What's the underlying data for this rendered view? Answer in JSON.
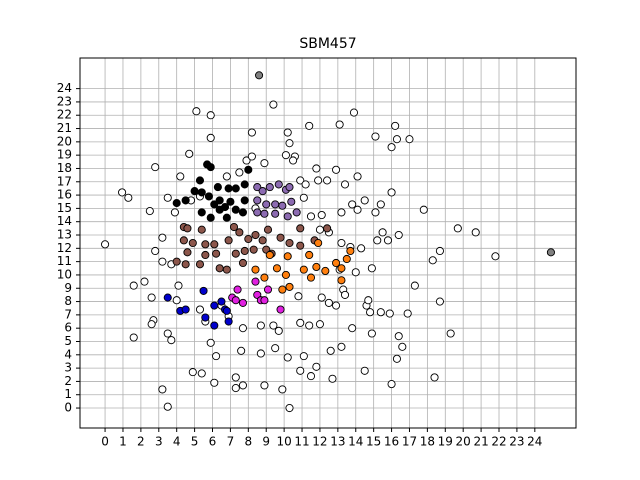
{
  "chart_data": {
    "type": "scatter",
    "title": "SBM457",
    "xlim": [
      -1.4,
      26.3
    ],
    "ylim": [
      -1.5,
      26.3
    ],
    "xticks": [
      0,
      1,
      2,
      3,
      4,
      5,
      6,
      7,
      8,
      9,
      10,
      11,
      12,
      13,
      14,
      15,
      16,
      17,
      18,
      19,
      20,
      21,
      22,
      23,
      24
    ],
    "yticks": [
      0,
      1,
      2,
      3,
      4,
      5,
      6,
      7,
      8,
      9,
      10,
      11,
      12,
      13,
      14,
      15,
      16,
      17,
      18,
      19,
      20,
      21,
      22,
      23,
      24
    ],
    "grid": true,
    "series": [
      {
        "color": "#ffffff",
        "x": [
          0,
          0.95,
          1.3,
          1.6,
          1.6,
          3.2,
          3.5,
          2.8,
          2.5,
          2.2,
          2.6,
          2.7,
          2.6,
          3.5,
          3.7,
          4.9,
          5.4,
          6.1,
          7.3,
          7.3,
          7.7,
          8.9,
          9.9,
          10.3,
          10.9,
          11.5,
          11.8,
          12.7,
          14.5,
          16,
          18.4,
          19.3,
          18.7,
          17.3,
          16.9,
          16.4,
          16.3,
          16.6,
          18.3,
          18.7,
          19.7,
          20.7,
          21.8,
          17.8,
          16.3,
          16,
          16.2,
          17,
          15.1,
          13.9,
          13.1,
          11.4,
          9.4,
          5.9,
          5.1,
          5.9,
          8.2,
          10.2,
          10.3,
          10.1,
          10.6,
          7.9,
          8.9,
          4.7,
          4.2,
          3.5,
          3.9,
          3.2,
          2.8,
          3.2,
          3.7,
          4.1,
          4.0,
          5.3,
          5.6,
          5.9,
          6.2,
          7.6,
          8.7,
          9.5,
          10.2,
          11.1,
          12.6,
          13.2,
          13.8,
          14.8,
          14.6,
          15.4,
          15.9,
          14.9,
          14.7,
          13.3,
          13.4,
          12.9,
          12,
          11.4,
          10.9,
          9.7,
          9.4,
          8.7,
          7.7,
          6.9,
          6.5,
          10.8,
          12.1,
          12.5,
          14.9,
          15.2,
          15.5,
          16.4,
          15.8,
          14.3,
          15.1,
          15.4,
          14.5,
          14.1,
          13.8,
          16,
          13.4,
          14.1,
          12.9,
          11.9,
          11.8,
          12.4,
          10.9,
          11.2,
          11.1,
          11.5,
          12.1,
          12.5,
          12,
          13.2,
          13.7,
          13.1,
          14,
          8.4,
          8.2,
          7.5,
          6.8,
          5.3,
          4.8,
          10.5,
          13.2
        ],
        "y": [
          12.3,
          16.2,
          15.8,
          5.3,
          9.2,
          1.4,
          0.1,
          18.1,
          14.8,
          9.5,
          8.3,
          6.6,
          6.3,
          5.6,
          5.1,
          2.7,
          2.6,
          1.9,
          1.5,
          2.3,
          1.7,
          1.7,
          1.4,
          0,
          2.8,
          2.4,
          3.1,
          2.2,
          2.8,
          1.8,
          2.3,
          5.6,
          8.0,
          9.2,
          7.1,
          5.4,
          3.7,
          4.6,
          11.1,
          11.8,
          13.5,
          13.2,
          11.4,
          14.9,
          20.2,
          19.6,
          21.2,
          20.2,
          20.4,
          22.2,
          21.3,
          21.2,
          22.8,
          22,
          22.3,
          20.3,
          20.7,
          20.7,
          19.9,
          19,
          18.9,
          18.6,
          18.4,
          19.1,
          17.4,
          15.8,
          14.7,
          12.8,
          11.8,
          11,
          10.8,
          9.2,
          8.1,
          7.4,
          6.5,
          4.9,
          3.9,
          4.3,
          4.1,
          4.5,
          3.8,
          3.9,
          4.3,
          4.6,
          6,
          7.2,
          7.7,
          7.2,
          7.1,
          5.6,
          8.1,
          8.9,
          8.5,
          7.7,
          6.3,
          6.2,
          6.4,
          5.8,
          6.2,
          6.2,
          6,
          6.9,
          7.7,
          8.4,
          8.3,
          7.9,
          10.5,
          12.6,
          13.2,
          13,
          12.6,
          12,
          14.7,
          15.3,
          15.6,
          14.9,
          15.3,
          16.2,
          16.8,
          17.4,
          17.9,
          17.1,
          18,
          17.1,
          17.1,
          16.8,
          15.8,
          14.4,
          14.5,
          13.2,
          13.4,
          12.4,
          12.1,
          10.4,
          10.2,
          15,
          18.9,
          17.7,
          17.4,
          15.9,
          15.6,
          18.6,
          14.7
        ]
      },
      {
        "color": "#000000",
        "x": [
          5.7,
          5.9,
          5.3,
          6.3,
          6.9,
          5.4,
          5.8,
          6.1,
          6.4,
          6.7,
          7.3,
          7.7,
          7.8,
          7.8,
          7.0,
          5.9,
          5.4,
          4.5,
          4.0,
          5,
          8,
          7.3,
          6.8,
          6.4
        ],
        "y": [
          18.3,
          18.1,
          17.1,
          16.6,
          16.5,
          16.2,
          15.9,
          15.3,
          14.9,
          15.1,
          14.9,
          14.7,
          16.8,
          15.6,
          15.5,
          14.3,
          14.7,
          15.6,
          15.4,
          16.3,
          17.9,
          16.5,
          14.3,
          15.6
        ]
      },
      {
        "color": "#8c6bb1",
        "x": [
          8.5,
          8.8,
          9.2,
          9.7,
          10.1,
          10.3,
          8.5,
          9,
          9.5,
          9.9,
          10.4,
          10.7,
          8.9,
          9.5,
          10.2,
          8.5
        ],
        "y": [
          16.6,
          16.3,
          16.6,
          16.8,
          16.4,
          16.6,
          15.6,
          15.3,
          15.3,
          15.2,
          15.5,
          14.7,
          14.6,
          14.6,
          14.4,
          14.7
        ]
      },
      {
        "color": "#8c564b",
        "x": [
          4.4,
          4.6,
          4.4,
          4.9,
          5.6,
          4.6,
          4,
          4.5,
          5.3,
          5.6,
          6.2,
          6.4,
          7.2,
          7.5,
          8,
          8.4,
          8.8,
          9.1,
          9.8,
          10.3,
          10.9,
          10.9,
          7.3,
          7.8,
          8.3,
          9,
          6.8,
          7.7,
          6.9,
          9.3,
          6.1,
          5.4,
          12.4,
          11.7
        ],
        "y": [
          13.6,
          13.5,
          12.6,
          12.4,
          12.3,
          11.7,
          11,
          10.8,
          10.8,
          11.5,
          11.6,
          10.5,
          13.6,
          13.2,
          12.7,
          13,
          12.6,
          13.4,
          12.8,
          12.4,
          13.5,
          12.2,
          11.6,
          11.8,
          11.9,
          11.9,
          10.4,
          10.9,
          12.6,
          11.6,
          12.3,
          13.4,
          13.5,
          12.6
        ]
      },
      {
        "color": "#ff7f0e",
        "x": [
          8.4,
          8.9,
          9.2,
          9.6,
          10.1,
          10.2,
          9.9,
          10.3,
          11.1,
          11.5,
          11.8,
          12.3,
          11.9,
          12.9,
          13.2,
          13.5,
          13.7,
          13.2,
          11.4
        ],
        "y": [
          10.4,
          9.8,
          11.5,
          10.5,
          10,
          11.4,
          8.9,
          9.1,
          10.4,
          9.8,
          10.6,
          10.3,
          12.4,
          10.9,
          10.5,
          11.2,
          11.8,
          9.6,
          11.5
        ]
      },
      {
        "color": "#e020e0",
        "x": [
          7.1,
          7.4,
          8.4,
          8.5,
          8.7,
          9.1,
          8.9,
          7.7,
          9.8,
          7.3
        ],
        "y": [
          8.3,
          8.9,
          9.5,
          8.5,
          8.1,
          8.9,
          8.1,
          7.9,
          7.4,
          8.1
        ]
      },
      {
        "color": "#0000cc",
        "x": [
          4.2,
          4.5,
          5.5,
          6.1,
          6.5,
          6.7,
          6.1,
          6.9,
          5.6,
          6.8,
          3.5
        ],
        "y": [
          7.3,
          7.4,
          8.8,
          7.7,
          8,
          7.4,
          6.2,
          6.5,
          6.8,
          7.3,
          8.3
        ]
      },
      {
        "color": "#808080",
        "x": [
          8.6,
          24.9
        ],
        "y": [
          25,
          11.7
        ]
      }
    ]
  }
}
